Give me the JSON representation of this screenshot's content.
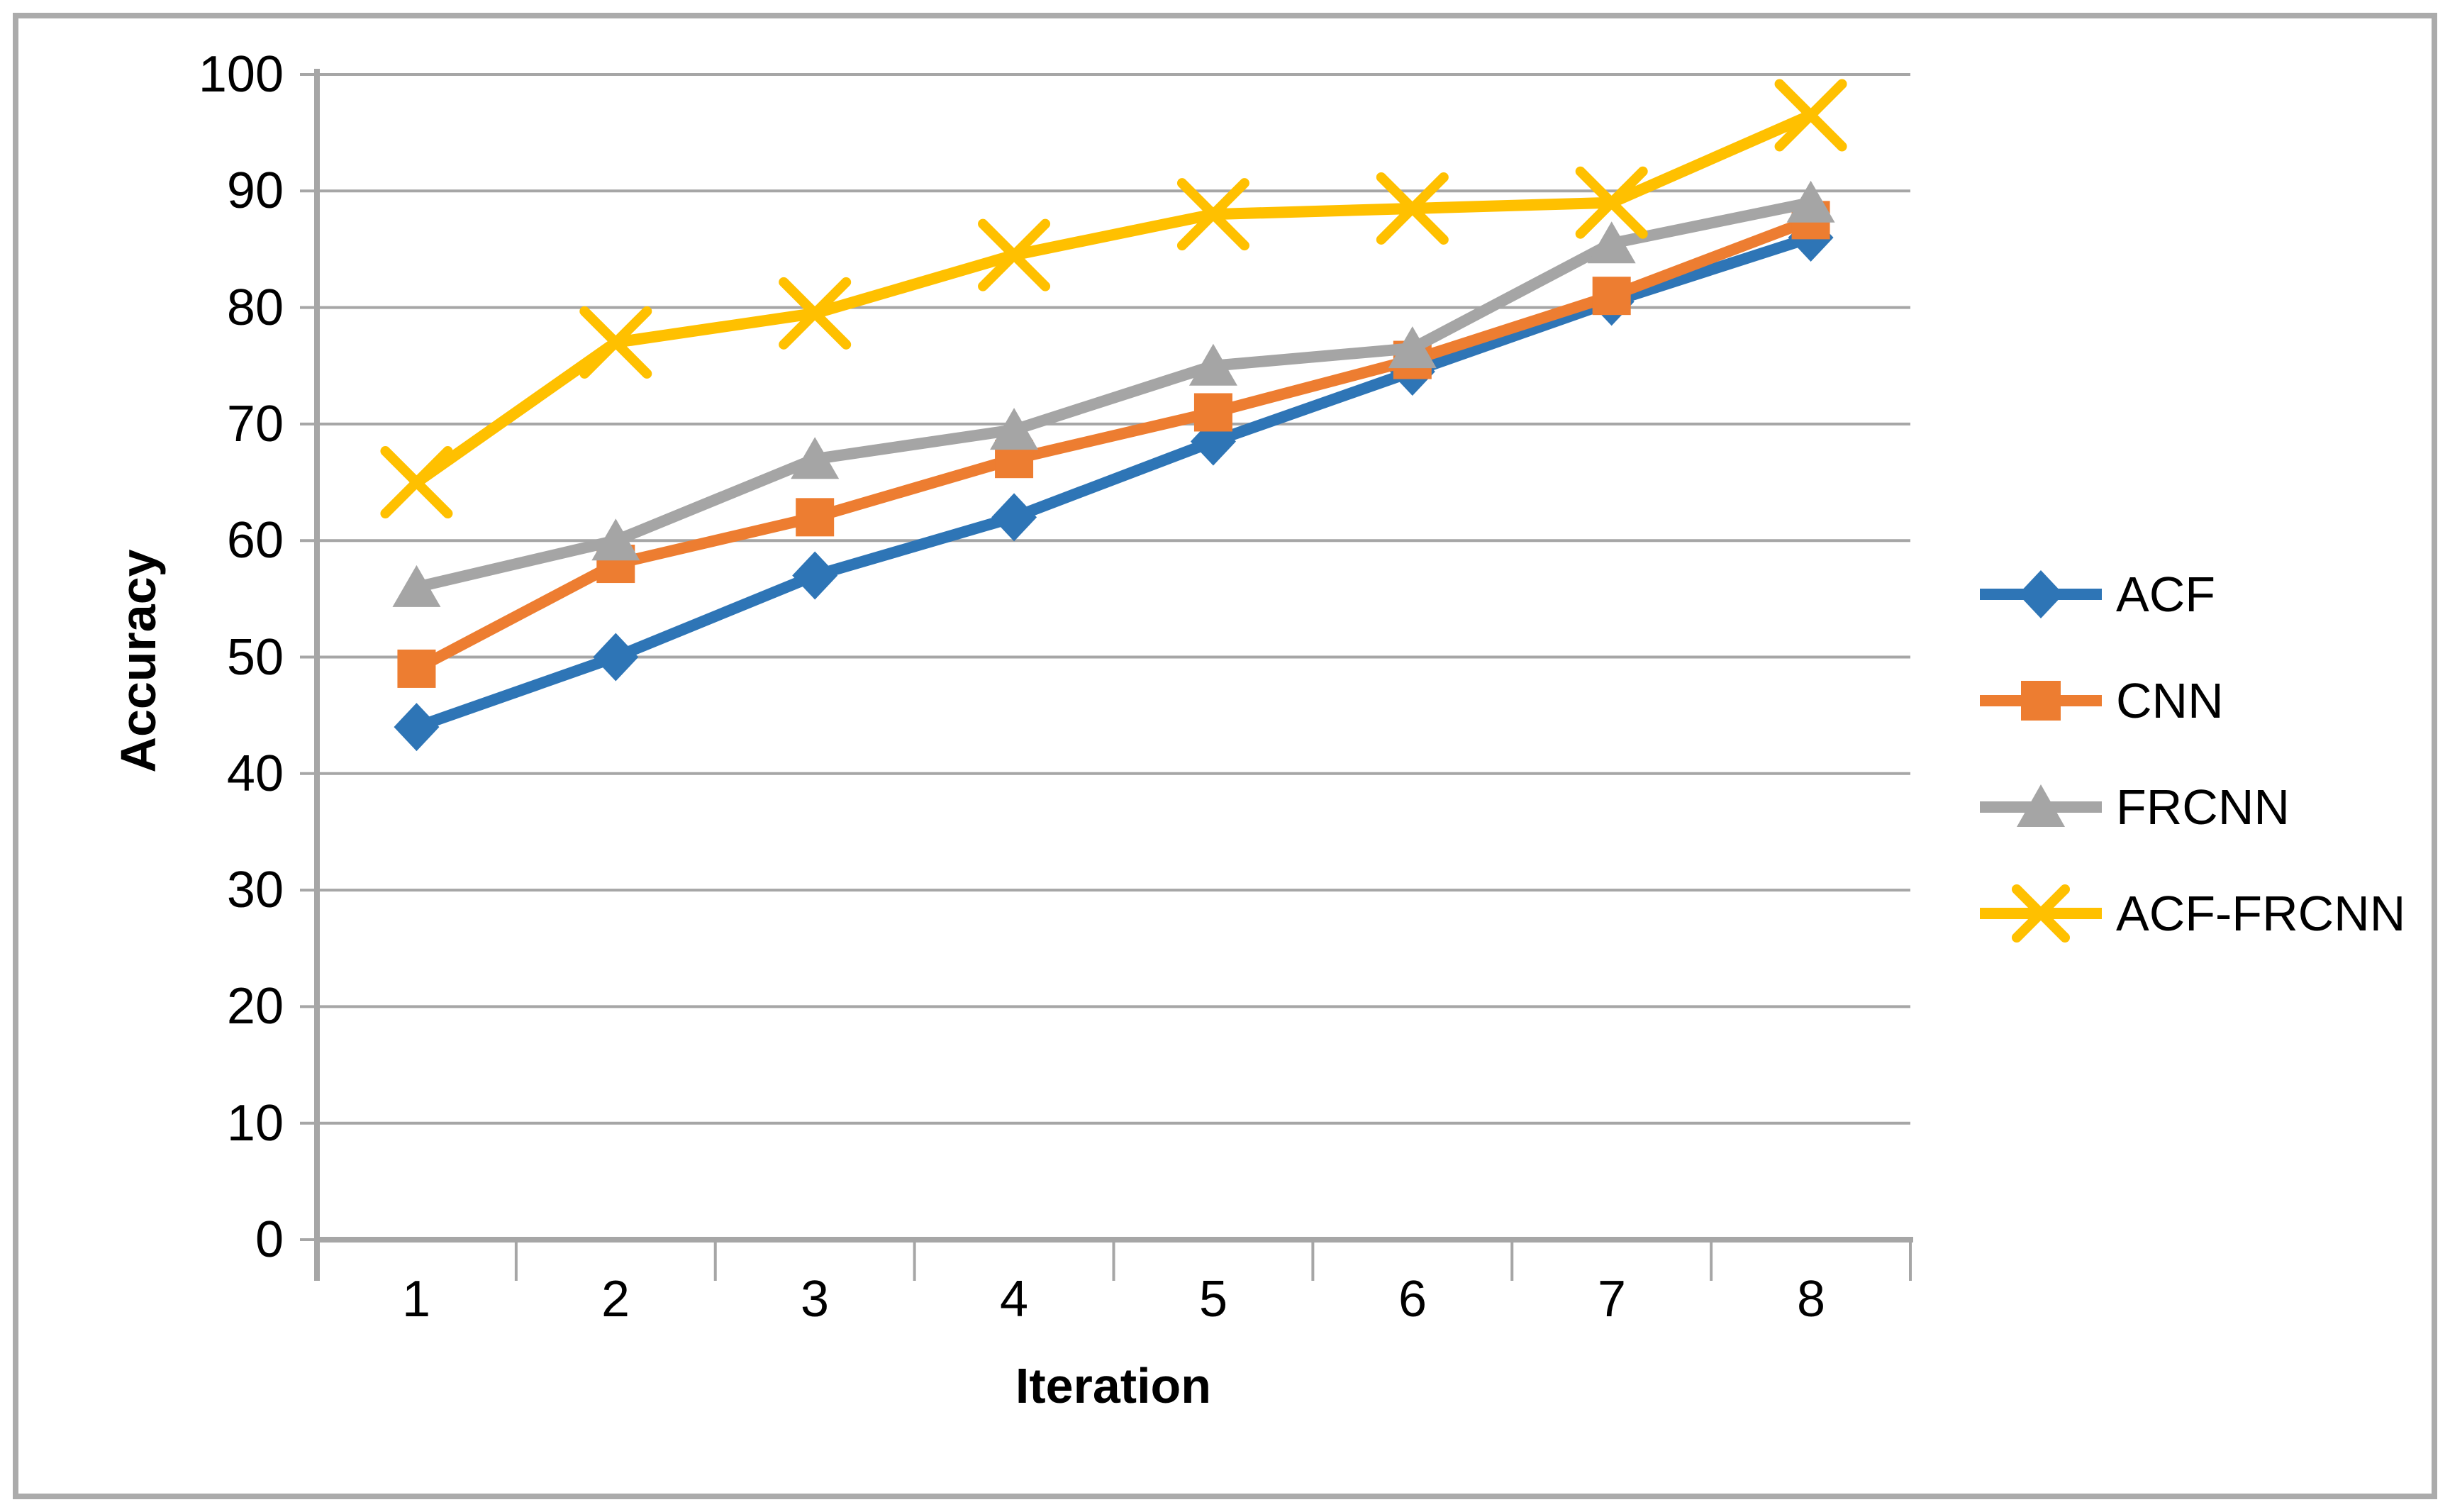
{
  "chart_data": {
    "type": "line",
    "title": "",
    "xlabel": "Iteration",
    "ylabel": "Accuracy",
    "x_categories": [
      "1",
      "2",
      "3",
      "4",
      "5",
      "6",
      "7",
      "8"
    ],
    "y_tick_labels_top_down": [
      "100",
      "90",
      "80",
      "70",
      "60",
      "50",
      "40",
      "30",
      "20",
      "10",
      "0"
    ],
    "ylim": [
      0,
      100
    ],
    "y_step": 10,
    "grid": true,
    "legend_position": "right",
    "series": [
      {
        "name": "ACF",
        "color": "#2E75B6",
        "marker": "diamond",
        "values": [
          44,
          50,
          57,
          62,
          68.5,
          74.5,
          80.5,
          86
        ]
      },
      {
        "name": "CNN",
        "color": "#ED7D31",
        "marker": "square",
        "values": [
          49,
          58,
          62,
          67,
          71,
          75.5,
          81,
          87.5
        ]
      },
      {
        "name": "FRCNN",
        "color": "#A5A5A5",
        "marker": "triangle",
        "values": [
          56,
          60,
          67,
          69.5,
          75,
          76.5,
          85.5,
          89
        ]
      },
      {
        "name": "ACF-FRCNN",
        "color": "#FFC000",
        "marker": "x",
        "values": [
          65,
          77,
          79.5,
          84.5,
          88,
          88.5,
          89,
          96.5
        ]
      }
    ],
    "grid_color": "#A6A6A6",
    "axis_color": "#A6A6A6",
    "border_color": "#ABABAB",
    "text_color": "#000000"
  }
}
